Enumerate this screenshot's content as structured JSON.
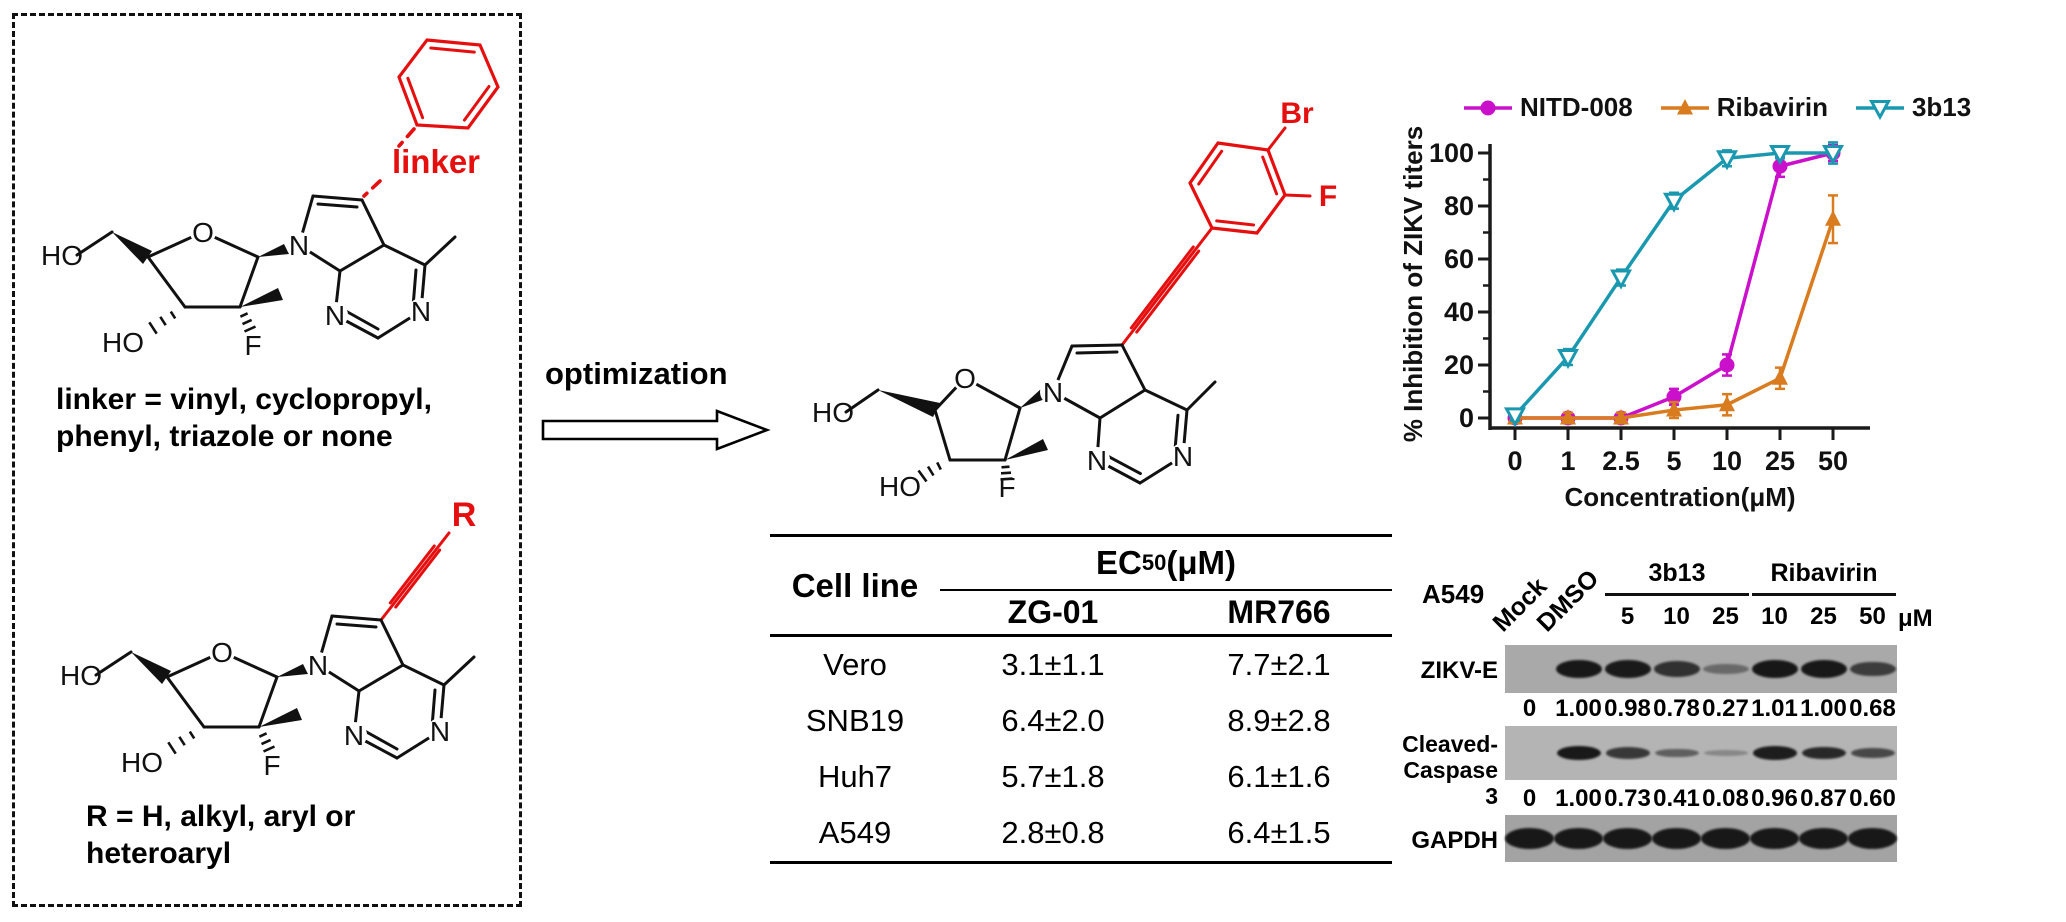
{
  "figure": {
    "left_panel": {
      "top_caption_line1": "linker = vinyl, cyclopropyl,",
      "top_caption_line2": "phenyl, triazole or none",
      "bottom_caption_line1": "R = H, alkyl, aryl or",
      "bottom_caption_line2": "heteroaryl",
      "linker_label": "linker",
      "r_label": "R"
    },
    "atoms": {
      "ho": "HO",
      "o": "O",
      "n": "N",
      "f": "F",
      "br": "Br"
    },
    "middle": {
      "optimization_label": "optimization"
    },
    "table": {
      "header_cell_line": "Cell line",
      "header_ec": "EC",
      "header_ec_sub": "50",
      "header_ec_unit": " (μM)",
      "sub_header_zg01": "ZG-01",
      "sub_header_mr766": "MR766",
      "rows": [
        {
          "cell_line": "Vero",
          "zg01": "3.1±1.1",
          "mr766": "7.7±2.1"
        },
        {
          "cell_line": "SNB19",
          "zg01": "6.4±2.0",
          "mr766": "8.9±2.8"
        },
        {
          "cell_line": "Huh7",
          "zg01": "5.7±1.8",
          "mr766": "6.1±1.6"
        },
        {
          "cell_line": "A549",
          "zg01": "2.8±0.8",
          "mr766": "6.4±1.5"
        }
      ]
    }
  },
  "chart_data": {
    "type": "line",
    "title": "",
    "x_categories": [
      "0",
      "1",
      "2.5",
      "5",
      "10",
      "25",
      "50"
    ],
    "xlabel": "Concentration(μM)",
    "ylabel": "% Inhibition of ZIKV titers",
    "ylim": [
      0,
      100
    ],
    "yticks": [
      0,
      20,
      40,
      60,
      80,
      100
    ],
    "grid": false,
    "legend_position": "top",
    "series": [
      {
        "name": "NITD-008",
        "color": "#cb10cb",
        "marker": "circle",
        "values": [
          0,
          0,
          0,
          8,
          20,
          95,
          100
        ],
        "errors": [
          2,
          2,
          2,
          3,
          4,
          4,
          3
        ]
      },
      {
        "name": "Ribavirin",
        "color": "#d97b1f",
        "marker": "triangle-up",
        "values": [
          0,
          0,
          0,
          3,
          5,
          15,
          75
        ],
        "errors": [
          2,
          2,
          2,
          3,
          4,
          4,
          9
        ]
      },
      {
        "name": "3b13",
        "color": "#1a98b0",
        "marker": "triangle-down-open",
        "values": [
          1,
          23,
          53,
          82,
          98,
          100,
          100
        ],
        "errors": [
          2,
          3,
          3,
          3,
          3,
          2,
          4
        ]
      }
    ]
  },
  "blot": {
    "cell_line": "A549",
    "unit": "μM",
    "rotated_lanes": [
      "Mock",
      "DMSO"
    ],
    "groups": [
      {
        "name": "3b13",
        "doses": [
          "5",
          "10",
          "25"
        ]
      },
      {
        "name": "Ribavirin",
        "doses": [
          "10",
          "25",
          "50"
        ]
      }
    ],
    "rows": [
      {
        "label": "ZIKV-E",
        "label2": "",
        "band_intensities": [
          0,
          1.0,
          0.98,
          0.78,
          0.27,
          1.01,
          1.0,
          0.68
        ],
        "quantification": [
          "0",
          "1.00",
          "0.98",
          "0.78",
          "0.27",
          "1.01",
          "1.00",
          "0.68"
        ]
      },
      {
        "label": "Cleaved-",
        "label2": "Caspase 3",
        "band_intensities": [
          0,
          1.0,
          0.73,
          0.41,
          0.08,
          0.96,
          0.87,
          0.6
        ],
        "quantification": [
          "0",
          "1.00",
          "0.73",
          "0.41",
          "0.08",
          "0.96",
          "0.87",
          "0.60"
        ]
      },
      {
        "label": "GAPDH",
        "label2": "",
        "band_intensities": [
          1,
          1,
          1,
          1,
          1,
          1,
          1,
          1
        ],
        "quantification": []
      }
    ]
  }
}
